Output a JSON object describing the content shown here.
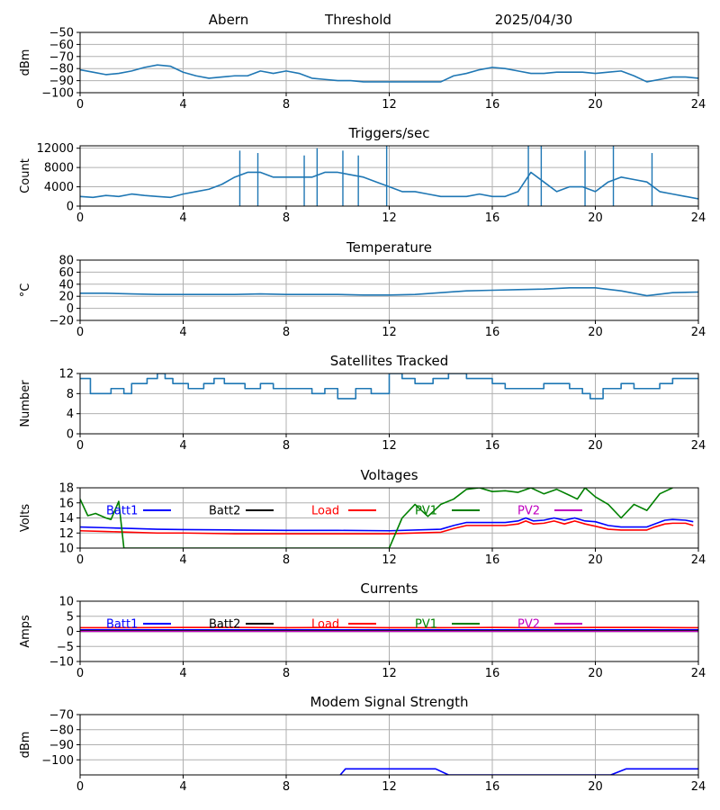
{
  "header": {
    "station": "Abern",
    "label": "Threshold",
    "date": "2025/04/30"
  },
  "chart_data": [
    {
      "type": "line",
      "title": "",
      "ylabel": "dBm",
      "xlim": [
        0,
        24
      ],
      "ylim": [
        -100,
        -50
      ],
      "xticks": [
        0,
        4,
        8,
        12,
        16,
        20,
        24
      ],
      "yticks": [
        -100,
        -90,
        -80,
        -70,
        -60,
        -50
      ],
      "ytick_labels": [
        "−100",
        "−90",
        "−80",
        "−70",
        "−60",
        "−50"
      ],
      "grid": true,
      "series": [
        {
          "color": "#1f77b4",
          "x": [
            0,
            0.5,
            1,
            1.5,
            2,
            2.5,
            3,
            3.5,
            4,
            4.5,
            5,
            5.5,
            6,
            6.5,
            7,
            7.5,
            8,
            8.5,
            9,
            9.5,
            10,
            10.5,
            11,
            11.5,
            12,
            12.5,
            13,
            13.5,
            14,
            14.5,
            15,
            15.5,
            16,
            16.5,
            17,
            17.5,
            18,
            18.5,
            19,
            19.5,
            20,
            20.5,
            21,
            21.5,
            22,
            22.5,
            23,
            23.5,
            24
          ],
          "y": [
            -81,
            -83,
            -85,
            -84,
            -82,
            -79,
            -77,
            -78,
            -83,
            -86,
            -88,
            -87,
            -86,
            -86,
            -82,
            -84,
            -82,
            -84,
            -88,
            -89,
            -90,
            -90,
            -91,
            -91,
            -91,
            -91,
            -91,
            -91,
            -91,
            -86,
            -84,
            -81,
            -79,
            -80,
            -82,
            -84,
            -84,
            -83,
            -83,
            -83,
            -84,
            -83,
            -82,
            -86,
            -91,
            -89,
            -87,
            -87,
            -88
          ]
        }
      ]
    },
    {
      "type": "line",
      "title": "Triggers/sec",
      "ylabel": "Count",
      "xlim": [
        0,
        24
      ],
      "ylim": [
        0,
        12500
      ],
      "xticks": [
        0,
        4,
        8,
        12,
        16,
        20,
        24
      ],
      "yticks": [
        0,
        4000,
        8000,
        12000
      ],
      "ytick_labels": [
        "0",
        "4000",
        "8000",
        "12000"
      ],
      "grid": true,
      "series": [
        {
          "color": "#1f77b4",
          "x": [
            0,
            0.5,
            1,
            1.5,
            2,
            2.5,
            3,
            3.5,
            4,
            4.5,
            5,
            5.5,
            6,
            6.5,
            7,
            7.5,
            8,
            8.5,
            9,
            9.5,
            10,
            10.5,
            11,
            11.5,
            12,
            12.5,
            13,
            13.5,
            14,
            14.5,
            15,
            15.5,
            16,
            16.5,
            17,
            17.5,
            18,
            18.5,
            19,
            19.5,
            20,
            20.5,
            21,
            21.5,
            22,
            22.5,
            23,
            23.5,
            24
          ],
          "y": [
            2000,
            1800,
            2200,
            2000,
            2500,
            2200,
            2000,
            1800,
            2500,
            3000,
            3500,
            4500,
            6000,
            7000,
            7000,
            6000,
            6000,
            6000,
            6000,
            7000,
            7000,
            6500,
            6000,
            5000,
            4000,
            3000,
            3000,
            2500,
            2000,
            2000,
            2000,
            2500,
            2000,
            2000,
            3000,
            7000,
            5000,
            3000,
            4000,
            4000,
            3000,
            5000,
            6000,
            5500,
            5000,
            3000,
            2500,
            2000,
            1500
          ],
          "peaks": [
            {
              "x": 6.2,
              "y": 11500
            },
            {
              "x": 6.9,
              "y": 11000
            },
            {
              "x": 8.7,
              "y": 10500
            },
            {
              "x": 9.2,
              "y": 12000
            },
            {
              "x": 10.2,
              "y": 11500
            },
            {
              "x": 10.8,
              "y": 10500
            },
            {
              "x": 11.9,
              "y": 12500
            },
            {
              "x": 17.4,
              "y": 12500
            },
            {
              "x": 17.9,
              "y": 12500
            },
            {
              "x": 19.6,
              "y": 11500
            },
            {
              "x": 20.7,
              "y": 12500
            },
            {
              "x": 22.2,
              "y": 11000
            }
          ]
        }
      ]
    },
    {
      "type": "line",
      "title": "Temperature",
      "ylabel": "°C",
      "xlim": [
        0,
        24
      ],
      "ylim": [
        -20,
        80
      ],
      "xticks": [
        0,
        4,
        8,
        12,
        16,
        20,
        24
      ],
      "yticks": [
        -20,
        0,
        20,
        40,
        60,
        80
      ],
      "ytick_labels": [
        "−20",
        "0",
        "20",
        "40",
        "60",
        "80"
      ],
      "grid": true,
      "series": [
        {
          "color": "#1f77b4",
          "x": [
            0,
            1,
            2,
            3,
            4,
            5,
            6,
            7,
            8,
            9,
            10,
            11,
            12,
            13,
            14,
            15,
            16,
            17,
            18,
            19,
            20,
            21,
            22,
            23,
            24
          ],
          "y": [
            25,
            25,
            24,
            23,
            23,
            23,
            23,
            24,
            23,
            23,
            23,
            22,
            22,
            23,
            26,
            29,
            30,
            31,
            32,
            34,
            34,
            29,
            21,
            26,
            27
          ]
        }
      ]
    },
    {
      "type": "line",
      "title": "Satellites Tracked",
      "ylabel": "Number",
      "xlim": [
        0,
        24
      ],
      "ylim": [
        0,
        12
      ],
      "xticks": [
        0,
        4,
        8,
        12,
        16,
        20,
        24
      ],
      "yticks": [
        0,
        4,
        8,
        12
      ],
      "ytick_labels": [
        "0",
        "4",
        "8",
        "12"
      ],
      "grid": true,
      "series": [
        {
          "color": "#1f77b4",
          "step": true,
          "x": [
            0,
            0.4,
            1.2,
            1.7,
            2,
            2.6,
            3.0,
            3.3,
            3.6,
            4.2,
            4.8,
            5.2,
            5.6,
            6.4,
            7,
            7.5,
            8.5,
            9.0,
            9.5,
            10.0,
            10.7,
            11.3,
            12,
            12.5,
            13.0,
            13.7,
            14.3,
            15.0,
            16,
            16.5,
            18,
            19,
            19.5,
            19.8,
            20.3,
            21,
            21.5,
            22.5,
            23,
            24
          ],
          "y": [
            11,
            8,
            9,
            8,
            10,
            11,
            12,
            11,
            10,
            9,
            10,
            11,
            10,
            9,
            10,
            9,
            9,
            8,
            9,
            7,
            9,
            8,
            12,
            11,
            10,
            11,
            12,
            11,
            10,
            9,
            10,
            9,
            8,
            7,
            9,
            10,
            9,
            10,
            11,
            11
          ]
        }
      ]
    },
    {
      "type": "line",
      "title": "Voltages",
      "ylabel": "Volts",
      "xlim": [
        0,
        24
      ],
      "ylim": [
        10,
        18
      ],
      "xticks": [
        0,
        4,
        8,
        12,
        16,
        20,
        24
      ],
      "yticks": [
        10,
        12,
        14,
        16,
        18
      ],
      "ytick_labels": [
        "10",
        "12",
        "14",
        "16",
        "18"
      ],
      "grid": true,
      "legend": "top",
      "series": [
        {
          "name": "Batt1",
          "color": "#0000ff",
          "x": [
            0,
            1,
            2,
            3,
            4,
            6,
            8,
            10,
            12,
            14,
            14.5,
            15,
            16,
            16.5,
            17,
            17.3,
            17.6,
            18,
            18.4,
            18.8,
            19.2,
            19.6,
            20,
            20.5,
            21,
            22,
            22.3,
            22.7,
            23,
            23.5,
            23.8
          ],
          "y": [
            12.8,
            12.7,
            12.6,
            12.5,
            12.45,
            12.4,
            12.35,
            12.35,
            12.3,
            12.5,
            13.0,
            13.4,
            13.4,
            13.4,
            13.6,
            14.0,
            13.6,
            13.7,
            14.0,
            13.7,
            14.0,
            13.6,
            13.5,
            13.0,
            12.8,
            12.8,
            13.2,
            13.7,
            13.8,
            13.7,
            13.5
          ]
        },
        {
          "name": "Batt2",
          "color": "#000000",
          "x": [],
          "y": []
        },
        {
          "name": "Load",
          "color": "#ff0000",
          "x": [
            0,
            1,
            2,
            3,
            4,
            6,
            8,
            10,
            12,
            14,
            14.5,
            15,
            16,
            16.5,
            17,
            17.3,
            17.6,
            18,
            18.4,
            18.8,
            19.2,
            19.6,
            20,
            20.5,
            21,
            22,
            22.3,
            22.7,
            23,
            23.5,
            23.8
          ],
          "y": [
            12.3,
            12.2,
            12.1,
            12.0,
            12.0,
            11.9,
            11.9,
            11.9,
            11.9,
            12.1,
            12.6,
            13.0,
            13.0,
            13.0,
            13.2,
            13.6,
            13.2,
            13.3,
            13.6,
            13.2,
            13.6,
            13.2,
            12.9,
            12.5,
            12.4,
            12.4,
            12.8,
            13.2,
            13.3,
            13.3,
            13.0
          ]
        },
        {
          "name": "PV1",
          "color": "#008000",
          "x": [
            0,
            0.3,
            0.6,
            1.0,
            1.2,
            1.5,
            1.7,
            12,
            12.5,
            13,
            13.5,
            14,
            14.5,
            15,
            15.5,
            16,
            16.5,
            17,
            17.5,
            18,
            18.5,
            19,
            19.3,
            19.6,
            20,
            20.5,
            21,
            21.5,
            22,
            22.5,
            23
          ],
          "y": [
            16.5,
            14.3,
            14.6,
            14.0,
            13.8,
            16.2,
            10.0,
            10.0,
            14.0,
            15.8,
            14.2,
            15.8,
            16.5,
            17.8,
            18.0,
            17.5,
            17.6,
            17.4,
            18.0,
            17.2,
            17.8,
            17.0,
            16.5,
            18.0,
            16.8,
            15.8,
            14.0,
            15.8,
            15.0,
            17.2,
            18.0
          ]
        },
        {
          "name": "PV2",
          "color": "#bf00bf",
          "x": [],
          "y": []
        }
      ]
    },
    {
      "type": "line",
      "title": "Currents",
      "ylabel": "Amps",
      "xlim": [
        0,
        24
      ],
      "ylim": [
        -10,
        10
      ],
      "xticks": [
        0,
        4,
        8,
        12,
        16,
        20,
        24
      ],
      "yticks": [
        -10,
        -5,
        0,
        5,
        10
      ],
      "ytick_labels": [
        "−10",
        "−5",
        "0",
        "5",
        "10"
      ],
      "grid": true,
      "legend": "top",
      "series": [
        {
          "name": "Batt1",
          "color": "#0000ff",
          "x": [
            0,
            24
          ],
          "y": [
            0.5,
            0.5
          ]
        },
        {
          "name": "Batt2",
          "color": "#000000",
          "x": [
            0,
            24
          ],
          "y": [
            0.2,
            0.2
          ]
        },
        {
          "name": "Load",
          "color": "#ff0000",
          "x": [
            0,
            2,
            4,
            6,
            8,
            10,
            12,
            14,
            16,
            18,
            20,
            22,
            24
          ],
          "y": [
            1.2,
            1.2,
            1.3,
            1.3,
            1.2,
            1.3,
            1.2,
            1.2,
            1.3,
            1.2,
            1.3,
            1.3,
            1.2
          ]
        },
        {
          "name": "PV1",
          "color": "#008000",
          "x": [
            0,
            24
          ],
          "y": [
            0,
            0
          ]
        },
        {
          "name": "PV2",
          "color": "#bf00bf",
          "x": [
            0,
            24
          ],
          "y": [
            0,
            0
          ]
        }
      ]
    },
    {
      "type": "line",
      "title": "Modem Signal Strength",
      "ylabel": "dBm",
      "xlim": [
        0,
        24
      ],
      "ylim": [
        -110,
        -70
      ],
      "xticks": [
        0,
        4,
        8,
        12,
        16,
        20,
        24
      ],
      "yticks": [
        -100,
        -90,
        -80,
        -70
      ],
      "ytick_labels": [
        "−100",
        "−90",
        "−80",
        "−70"
      ],
      "grid": true,
      "series": [
        {
          "color": "#0000ff",
          "x": [
            10.1,
            10.3,
            13.8,
            14.3,
            20.6,
            21.2,
            24
          ],
          "y": [
            -110,
            -106,
            -106,
            -110,
            -110,
            -106,
            -106
          ]
        }
      ]
    }
  ]
}
